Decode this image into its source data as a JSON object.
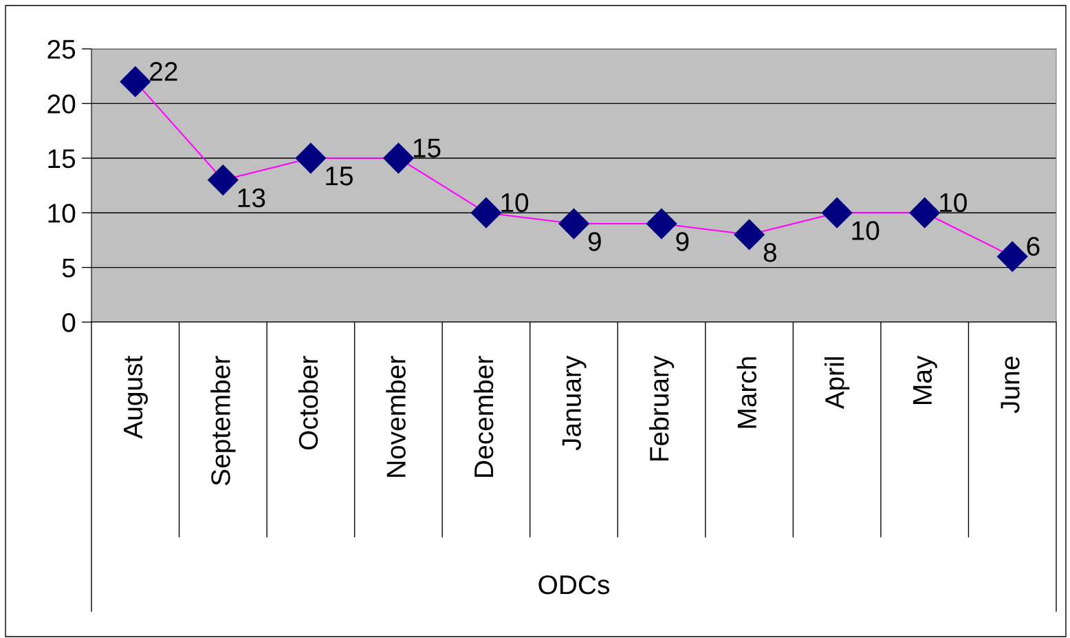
{
  "chart_data": {
    "type": "line",
    "xlabel": "ODCs",
    "categories": [
      "August",
      "September",
      "October",
      "November",
      "December",
      "January",
      "February",
      "March",
      "April",
      "May",
      "June"
    ],
    "series": [
      {
        "color": "#ff00ff",
        "colors": [
          "#000080",
          "#000080",
          "#000080",
          "#000080",
          "#000080",
          "#000080",
          "#000080",
          "#000080",
          "#000080",
          "#000080",
          "#000080"
        ],
        "values": [
          22,
          13,
          15,
          15,
          10,
          9,
          9,
          8,
          10,
          10,
          6
        ]
      }
    ],
    "ylim": [
      0,
      25
    ],
    "yticks": [
      0,
      5,
      10,
      15,
      20,
      25
    ],
    "grid": "y",
    "marker": "diamond",
    "line_style": "solid",
    "data_labels": true
  }
}
